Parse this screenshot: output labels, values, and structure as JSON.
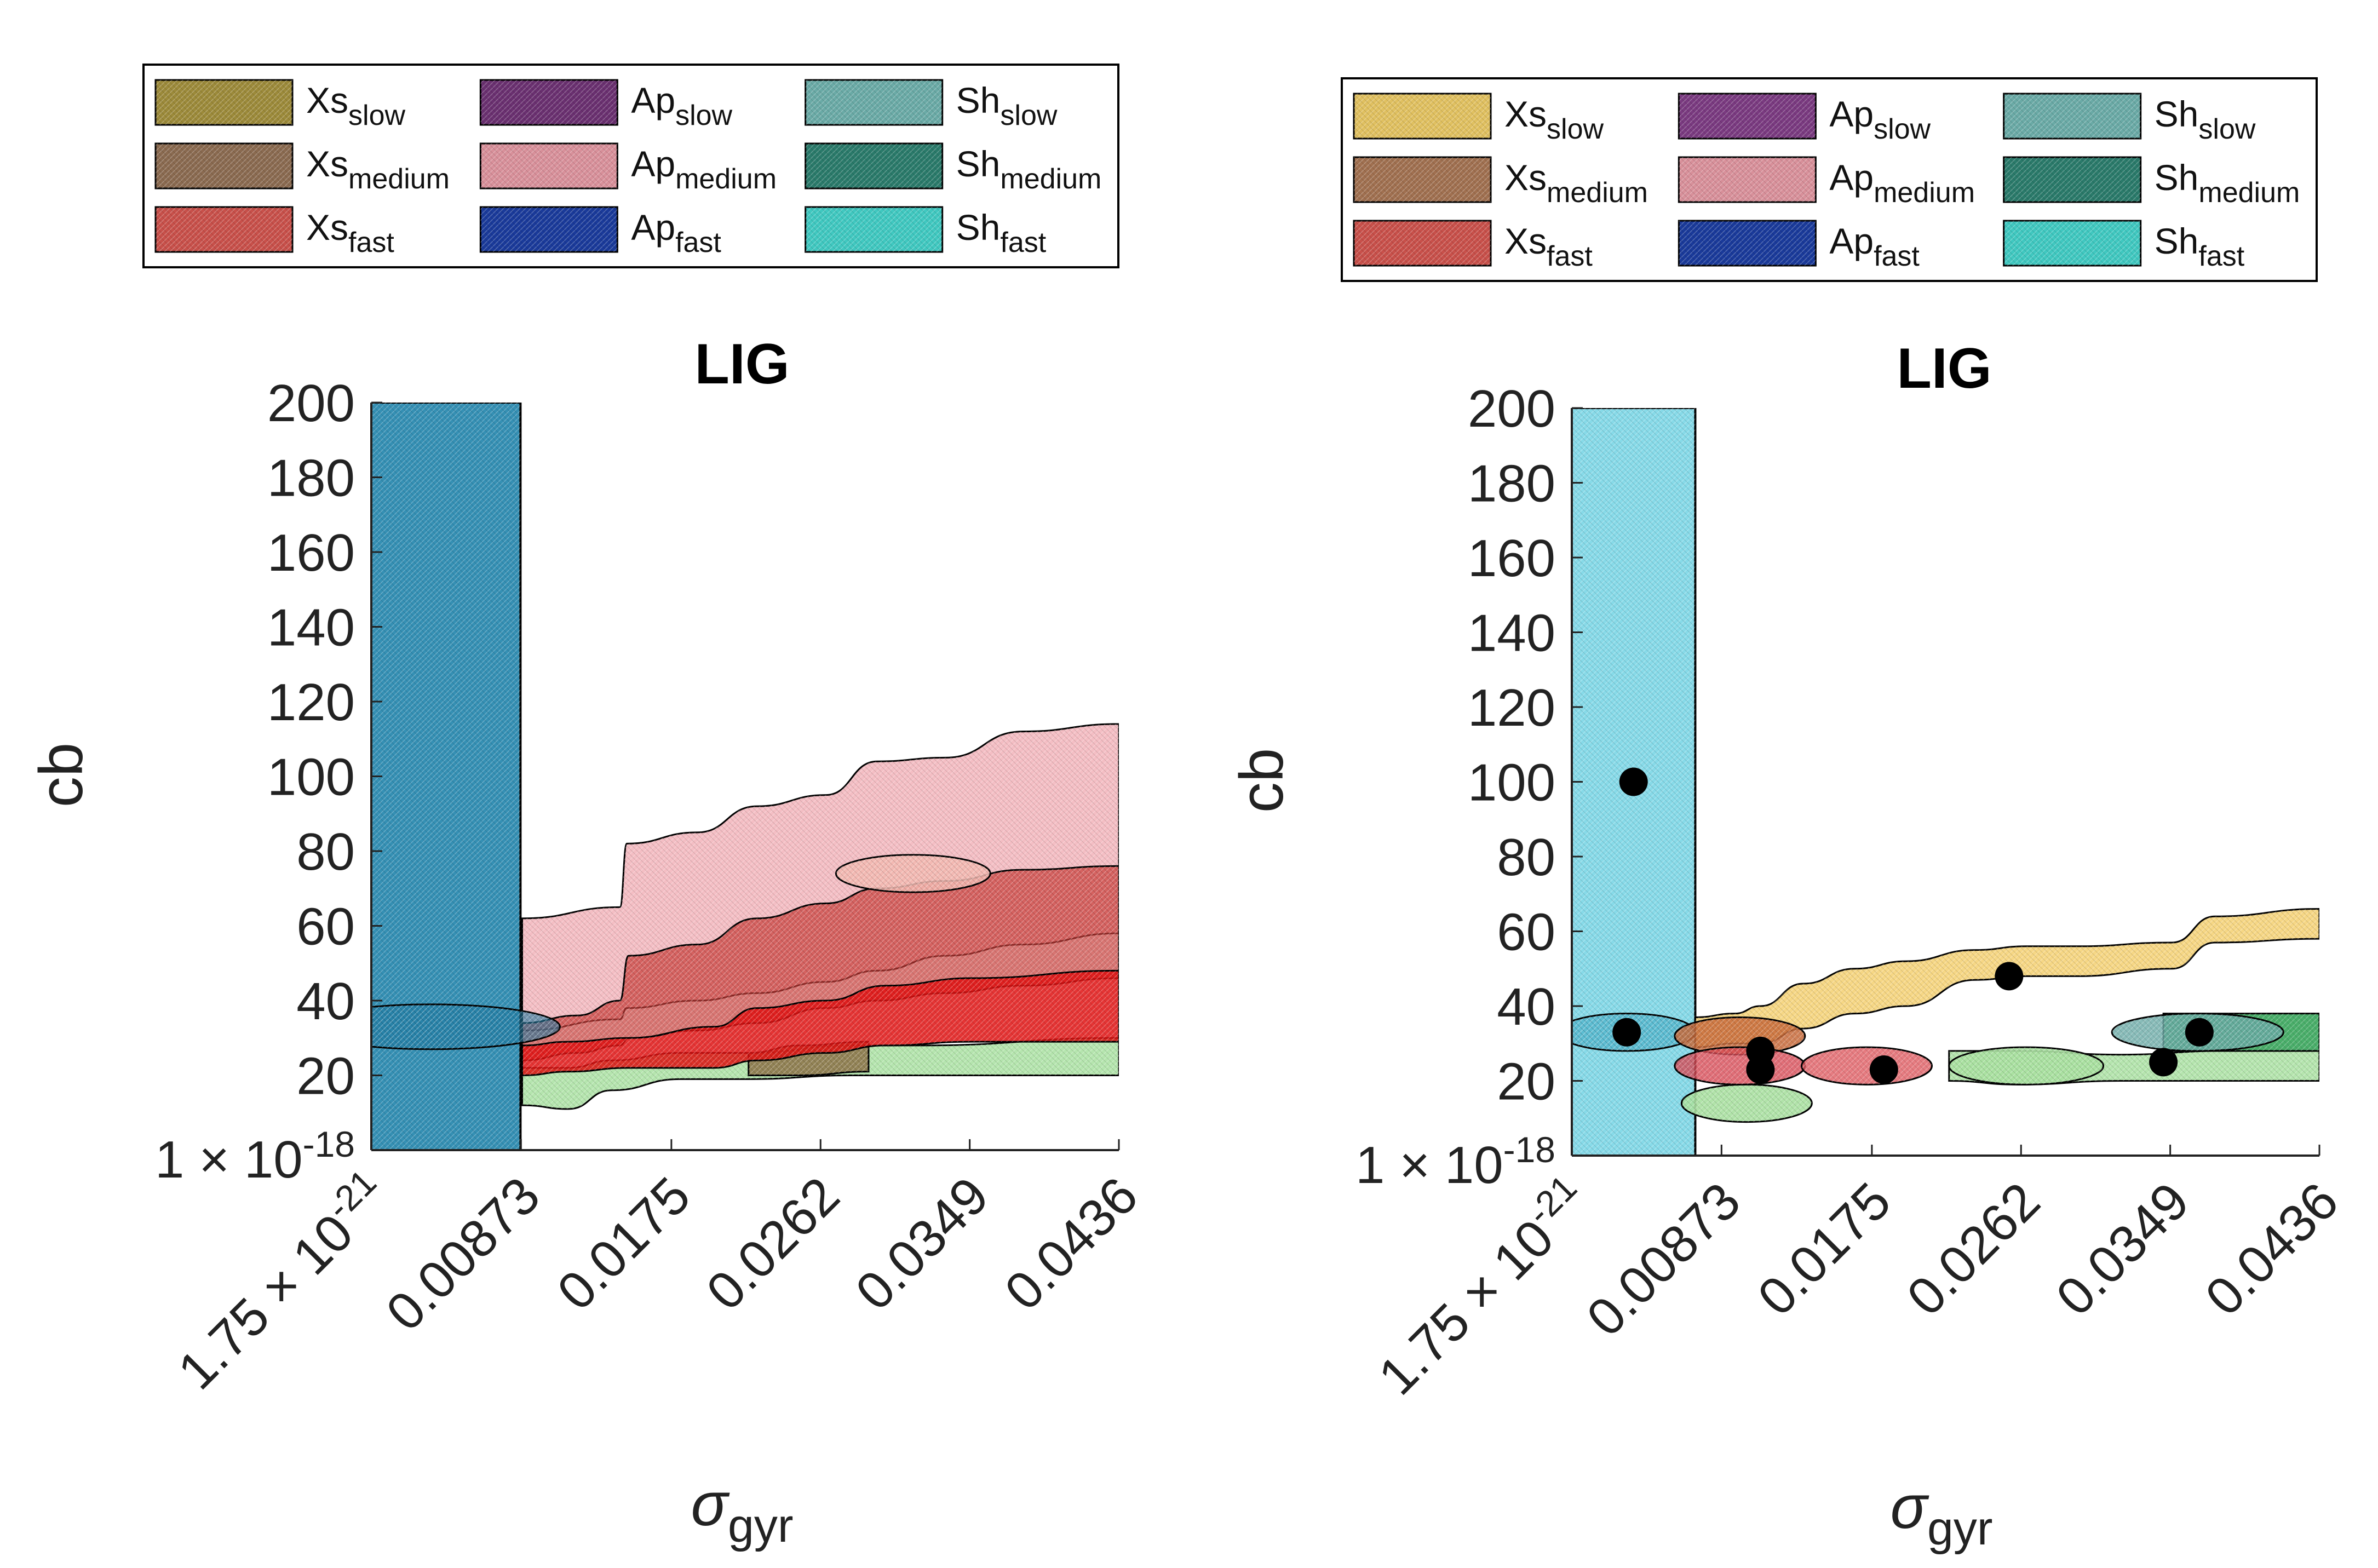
{
  "chart_data": [
    {
      "type": "area",
      "title": "LIG",
      "ylabel": "cb",
      "xlabel_symbol": "σ",
      "xlabel_sub": "gyr",
      "x_ticks": [
        {
          "base": "1.75 × 10",
          "exp": "-21",
          "value": 1.75e-21
        },
        {
          "base": "0.00873",
          "exp": "",
          "value": 0.00873
        },
        {
          "base": "0.0175",
          "exp": "",
          "value": 0.0175
        },
        {
          "base": "0.0262",
          "exp": "",
          "value": 0.0262
        },
        {
          "base": "0.0349",
          "exp": "",
          "value": 0.0349
        },
        {
          "base": "0.0436",
          "exp": "",
          "value": 0.0436
        }
      ],
      "y_tick_values": [
        0,
        20,
        40,
        60,
        80,
        100,
        120,
        140,
        160,
        180,
        200
      ],
      "y_tick_labels": [
        "",
        "20",
        "40",
        "60",
        "80",
        "100",
        "120",
        "140",
        "160",
        "180",
        "200"
      ],
      "y_bottom_label": {
        "base": "1 × 10",
        "exp": "-18"
      },
      "xlim": [
        0,
        0.0436
      ],
      "ylim": [
        0,
        200
      ],
      "legend": {
        "placement": "top",
        "columns": [
          [
            {
              "base": "Xs",
              "sub": "slow",
              "color": "#9c8a3a"
            },
            {
              "base": "Xs",
              "sub": "medium",
              "color": "#8a6a50"
            },
            {
              "base": "Xs",
              "sub": "fast",
              "color": "#c8504a"
            }
          ],
          [
            {
              "base": "Ap",
              "sub": "slow",
              "color": "#6a3070"
            },
            {
              "base": "Ap",
              "sub": "medium",
              "color": "#d8909a"
            },
            {
              "base": "Ap",
              "sub": "fast",
              "color": "#1a3a9a"
            }
          ],
          [
            {
              "base": "Sh",
              "sub": "slow",
              "color": "#6aaaa6"
            },
            {
              "base": "Sh",
              "sub": "medium",
              "color": "#2a7a6a"
            },
            {
              "base": "Sh",
              "sub": "fast",
              "color": "#40c8c0"
            }
          ]
        ]
      },
      "series": [
        {
          "name": "Sh_fast",
          "kind": "bar",
          "x": [
            1.75e-21,
            0.0087
          ],
          "y": [
            0,
            200
          ],
          "color": "#2a8ab0",
          "opacity": 0.95
        },
        {
          "name": "Ap_medium",
          "kind": "band",
          "x": [
            0.0088,
            0.0145,
            0.0149,
            0.019,
            0.0225,
            0.0265,
            0.0295,
            0.0335,
            0.038,
            0.0436
          ],
          "lower": [
            32,
            35,
            38,
            40,
            42,
            45,
            48,
            52,
            55,
            58
          ],
          "upper": [
            62,
            65,
            82,
            85,
            92,
            95,
            104,
            105,
            112,
            114
          ],
          "color": "#f0a8b0",
          "opacity": 0.75
        },
        {
          "name": "Xs_fast",
          "kind": "band",
          "x": [
            0.0088,
            0.012,
            0.0145,
            0.015,
            0.019,
            0.0225,
            0.0265,
            0.0295,
            0.0335,
            0.038,
            0.0436
          ],
          "lower": [
            24,
            26,
            28,
            30,
            32,
            34,
            38,
            40,
            42,
            44,
            46
          ],
          "upper": [
            34,
            36,
            40,
            52,
            55,
            62,
            66,
            70,
            72,
            75,
            76
          ],
          "color": "#c83a36",
          "opacity": 0.7
        },
        {
          "name": "Sh_slow",
          "kind": "band",
          "x": [
            0.0088,
            0.0115,
            0.014,
            0.018,
            0.022,
            0.028,
            0.032,
            0.0436
          ],
          "lower": [
            12,
            11,
            16,
            19,
            19,
            20,
            20,
            20
          ],
          "upper": [
            22,
            22,
            24,
            26,
            26,
            28,
            28,
            30
          ],
          "color": "#a8e0a0",
          "opacity": 0.85
        },
        {
          "name": "Xs_medium",
          "kind": "band",
          "x": [
            0.022,
            0.025,
            0.029
          ],
          "lower": [
            20,
            20,
            21
          ],
          "upper": [
            26,
            28,
            29
          ],
          "color": "#8a6a40",
          "opacity": 0.8
        },
        {
          "name": "Xs_fast_core",
          "kind": "band",
          "x": [
            0.0088,
            0.0115,
            0.015,
            0.02,
            0.0225,
            0.0265,
            0.03,
            0.035,
            0.0436
          ],
          "lower": [
            20,
            21,
            22,
            22,
            24,
            26,
            28,
            29,
            29
          ],
          "upper": [
            28,
            29,
            30,
            33,
            38,
            40,
            44,
            46,
            48
          ],
          "color": "#e01010",
          "opacity": 0.85
        },
        {
          "name": "Ap_medium_light",
          "kind": "ellipse",
          "cx": 0.0316,
          "cy": 74,
          "rx": 0.0045,
          "ry": 5,
          "color": "#f2b8b0",
          "opacity": 0.85
        },
        {
          "name": "Sh_fast_shade",
          "kind": "ellipse",
          "cx": 0.0035,
          "cy": 33,
          "rx": 0.0075,
          "ry": 6,
          "color": "#1f7aa0",
          "opacity": 0.6
        }
      ],
      "points": []
    },
    {
      "type": "area",
      "title": "LIG",
      "ylabel": "cb",
      "xlabel_symbol": "σ",
      "xlabel_sub": "gyr",
      "x_ticks": [
        {
          "base": "1.75 × 10",
          "exp": "-21",
          "value": 1.75e-21
        },
        {
          "base": "0.00873",
          "exp": "",
          "value": 0.00873
        },
        {
          "base": "0.0175",
          "exp": "",
          "value": 0.0175
        },
        {
          "base": "0.0262",
          "exp": "",
          "value": 0.0262
        },
        {
          "base": "0.0349",
          "exp": "",
          "value": 0.0349
        },
        {
          "base": "0.0436",
          "exp": "",
          "value": 0.0436
        }
      ],
      "y_tick_values": [
        0,
        20,
        40,
        60,
        80,
        100,
        120,
        140,
        160,
        180,
        200
      ],
      "y_tick_labels": [
        "",
        "20",
        "40",
        "60",
        "80",
        "100",
        "120",
        "140",
        "160",
        "180",
        "200"
      ],
      "y_bottom_label": {
        "base": "1 × 10",
        "exp": "-18"
      },
      "xlim": [
        0,
        0.0436
      ],
      "ylim": [
        0,
        200
      ],
      "legend": {
        "placement": "top",
        "columns": [
          [
            {
              "base": "Xs",
              "sub": "slow",
              "color": "#e0c060"
            },
            {
              "base": "Xs",
              "sub": "medium",
              "color": "#a07050"
            },
            {
              "base": "Xs",
              "sub": "fast",
              "color": "#c8504a"
            }
          ],
          [
            {
              "base": "Ap",
              "sub": "slow",
              "color": "#7a3a80"
            },
            {
              "base": "Ap",
              "sub": "medium",
              "color": "#d8909a"
            },
            {
              "base": "Ap",
              "sub": "fast",
              "color": "#1a3a9a"
            }
          ],
          [
            {
              "base": "Sh",
              "sub": "slow",
              "color": "#6aaaa6"
            },
            {
              "base": "Sh",
              "sub": "medium",
              "color": "#2a7a6a"
            },
            {
              "base": "Sh",
              "sub": "fast",
              "color": "#40c8c0"
            }
          ]
        ]
      },
      "series": [
        {
          "name": "Sh_fast",
          "kind": "bar",
          "x": [
            1.75e-21,
            0.0072
          ],
          "y": [
            0,
            200
          ],
          "color": "#7ad6e6",
          "opacity": 0.9
        },
        {
          "name": "Sh_fast_shade",
          "kind": "ellipse",
          "cx": 0.0032,
          "cy": 33,
          "rx": 0.004,
          "ry": 5,
          "color": "#2a9ab8",
          "opacity": 0.45
        },
        {
          "name": "Xs_slow",
          "kind": "band",
          "x": [
            0.0072,
            0.0095,
            0.011,
            0.0135,
            0.0165,
            0.0195,
            0.0235,
            0.0265,
            0.0295,
            0.035,
            0.0375,
            0.0436
          ],
          "lower": [
            29,
            30,
            30,
            34,
            38,
            40,
            47,
            48,
            48,
            50,
            57,
            58
          ],
          "upper": [
            37,
            38,
            40,
            46,
            50,
            52,
            55,
            56,
            56,
            57,
            64,
            66
          ],
          "color": "#f5d070",
          "opacity": 0.85
        },
        {
          "name": "Sh_slow",
          "kind": "band",
          "x": [
            0.022,
            0.026,
            0.032,
            0.038,
            0.0436
          ],
          "lower": [
            20,
            19,
            20,
            20,
            20
          ],
          "upper": [
            28,
            28,
            27,
            28,
            28
          ],
          "color": "#a8e0a0",
          "opacity": 0.85
        },
        {
          "name": "Sh_medium",
          "kind": "band",
          "x": [
            0.0345,
            0.038,
            0.0405,
            0.0436
          ],
          "lower": [
            28,
            28,
            28,
            28
          ],
          "upper": [
            38,
            38,
            38,
            38
          ],
          "color": "#2aa050",
          "opacity": 0.85
        },
        {
          "name": "Sh_slow_ellipse_low",
          "kind": "ellipse",
          "cx": 0.0265,
          "cy": 24,
          "rx": 0.0045,
          "ry": 5,
          "color": "#a8e0a0",
          "opacity": 0.9
        },
        {
          "name": "Sh_slow_ellipse_left",
          "kind": "ellipse",
          "cx": 0.0102,
          "cy": 14,
          "rx": 0.0038,
          "ry": 5,
          "color": "#a8e0a0",
          "opacity": 0.9
        },
        {
          "name": "Sh_slow_ellipse_right",
          "kind": "ellipse",
          "cx": 0.0365,
          "cy": 33,
          "rx": 0.005,
          "ry": 5,
          "color": "#6aaaa6",
          "opacity": 0.8
        },
        {
          "name": "Xs_medium_ellipse",
          "kind": "ellipse",
          "cx": 0.0098,
          "cy": 32,
          "rx": 0.0038,
          "ry": 5,
          "color": "#c86a3a",
          "opacity": 0.85
        },
        {
          "name": "Xs_fast_ellipse_a",
          "kind": "ellipse",
          "cx": 0.0098,
          "cy": 24,
          "rx": 0.0038,
          "ry": 5,
          "color": "#d84a55",
          "opacity": 0.8
        },
        {
          "name": "Xs_fast_ellipse_b",
          "kind": "ellipse",
          "cx": 0.0172,
          "cy": 24,
          "rx": 0.0038,
          "ry": 5,
          "color": "#e05a60",
          "opacity": 0.8
        }
      ],
      "points": [
        {
          "x": 0.0036,
          "y": 100
        },
        {
          "x": 0.0032,
          "y": 33
        },
        {
          "x": 0.011,
          "y": 28
        },
        {
          "x": 0.011,
          "y": 23
        },
        {
          "x": 0.0182,
          "y": 23
        },
        {
          "x": 0.0255,
          "y": 48
        },
        {
          "x": 0.0345,
          "y": 25
        },
        {
          "x": 0.0366,
          "y": 33
        }
      ]
    }
  ]
}
